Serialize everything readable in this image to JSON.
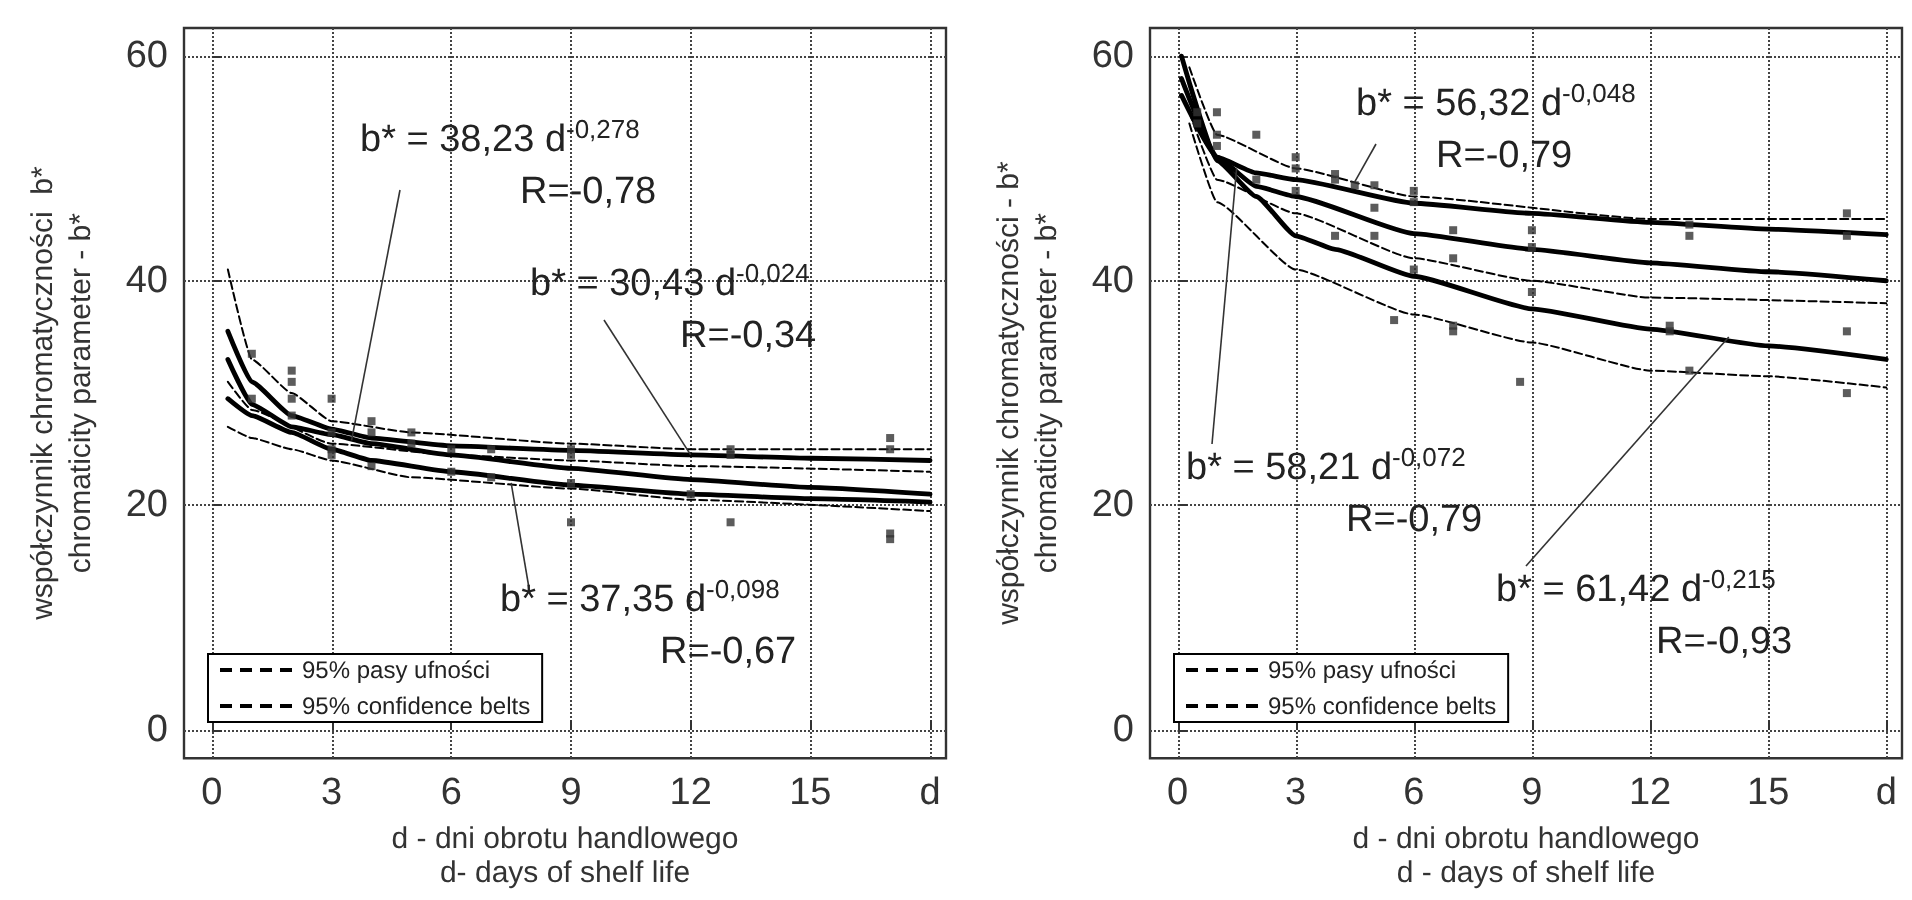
{
  "chart_data": [
    {
      "type": "line",
      "ylabel": "współczynnik chromatyczności  b*\nchromaticity parameter - b*",
      "xlabel": "d - dni obrotu handlowego\nd- days of shelf life",
      "xlim": [
        -0.7,
        18.4
      ],
      "ylim": [
        -2.5,
        62.5
      ],
      "xticks": [
        0,
        3,
        6,
        9,
        12,
        15,
        {
          "value": 18,
          "label": "d"
        }
      ],
      "yticks": [
        0,
        20,
        40,
        60
      ],
      "grid": true,
      "legend": "bottom left",
      "series": [
        {
          "color": "#000000",
          "line_style": "solid",
          "x": [
            0.4,
            1,
            2,
            3,
            4,
            6,
            9,
            12,
            15,
            18
          ],
          "values": [
            35.5,
            31,
            28,
            26.8,
            26,
            25.3,
            24.9,
            24.5,
            24.2,
            24
          ]
        },
        {
          "color": "#000000",
          "line_style": "solid",
          "x": [
            0.4,
            1,
            2,
            3,
            4,
            6,
            9,
            12,
            15,
            18
          ],
          "values": [
            33,
            29,
            27,
            26.3,
            25.5,
            24.5,
            23.3,
            22.3,
            21.6,
            21
          ]
        },
        {
          "color": "#000000",
          "line_style": "solid",
          "x": [
            0.4,
            1,
            2,
            3,
            4,
            6,
            9,
            12,
            15,
            18
          ],
          "values": [
            29.5,
            28,
            26.5,
            25,
            24,
            23,
            21.8,
            21,
            20.6,
            20.3
          ]
        },
        {
          "name": "95% pasy ufności",
          "color": "#000000",
          "line_style": "dashed",
          "x": [
            0.4,
            1,
            2,
            3,
            5,
            9,
            12,
            18
          ],
          "values": [
            41,
            33,
            30,
            27.5,
            26.5,
            25.5,
            25,
            25
          ]
        },
        {
          "name": "95% confidence belts",
          "color": "#000000",
          "line_style": "dashed",
          "x": [
            0.4,
            1,
            2,
            3,
            5,
            9,
            12,
            18
          ],
          "values": [
            27,
            26,
            25,
            24,
            22.5,
            21.5,
            20.5,
            19.5
          ]
        },
        {
          "color": "#000000",
          "line_style": "dashed",
          "x": [
            0.4,
            1,
            3,
            6,
            9,
            12,
            18
          ],
          "values": [
            31,
            28.5,
            25.5,
            24.5,
            24,
            23.5,
            23
          ]
        },
        {
          "type": "scatter",
          "marker": "square",
          "color": "#333333",
          "x": [
            1,
            1,
            2,
            2,
            2,
            2,
            3,
            3,
            3,
            3,
            4,
            4,
            4,
            5,
            5,
            6,
            6,
            7,
            7,
            9,
            9,
            9,
            9,
            12,
            13,
            13,
            13,
            17,
            17,
            17,
            17
          ],
          "values": [
            33.5,
            29.5,
            32,
            31,
            29.5,
            28,
            29.5,
            26.5,
            25,
            24.5,
            27.5,
            26.5,
            23.5,
            26.5,
            25.5,
            25,
            23,
            25,
            22.5,
            25,
            24.5,
            22,
            18.5,
            21,
            25,
            24.5,
            18.5,
            26,
            25,
            17.5,
            17
          ]
        }
      ],
      "annotations": [
        {
          "text": "b* = 38,23 d$^{-0,278}$\nR=-0,78",
          "x": 3.5,
          "y": 25.8
        },
        {
          "text": "b* = 30,43 d$^{-0,024}$\nR=-0,34",
          "x": 12,
          "y": 24.5
        },
        {
          "text": "b* = 37,35 d$^{-0,098}$\nR=-0,67",
          "x": 7.5,
          "y": 22
        }
      ]
    },
    {
      "type": "line",
      "ylabel": "współczynnik chromatyczności - b*\nchromaticity parameter - b*",
      "xlabel": "d - dni obrotu handlowego\nd - days of shelf life",
      "xlim": [
        -0.7,
        18.4
      ],
      "ylim": [
        -2.5,
        62.5
      ],
      "xticks": [
        0,
        3,
        6,
        9,
        12,
        15,
        {
          "value": 18,
          "label": "d"
        }
      ],
      "yticks": [
        0,
        20,
        40,
        60
      ],
      "grid": true,
      "legend": "bottom left",
      "series": [
        {
          "color": "#000000",
          "line_style": "solid",
          "x": [
            0.1,
            1,
            2,
            3,
            6,
            9,
            12,
            15,
            18
          ],
          "values": [
            56.5,
            51,
            49.6,
            49,
            46.9,
            46,
            45.2,
            44.6,
            44.1
          ]
        },
        {
          "color": "#000000",
          "line_style": "solid",
          "x": [
            0.1,
            1,
            2,
            3,
            6,
            9,
            12,
            15,
            18
          ],
          "values": [
            58,
            51,
            48.4,
            47.5,
            44.2,
            42.8,
            41.6,
            40.8,
            40
          ]
        },
        {
          "color": "#000000",
          "line_style": "solid",
          "x": [
            0.1,
            1,
            2,
            3,
            4,
            6,
            9,
            12,
            15,
            18
          ],
          "values": [
            60,
            50.7,
            47.5,
            44,
            42.8,
            40.4,
            37.5,
            35.7,
            34.2,
            33
          ]
        },
        {
          "name": "95% pasy ufności",
          "color": "#000000",
          "line_style": "dashed",
          "x": [
            0.3,
            1,
            3,
            6,
            12,
            18
          ],
          "values": [
            59,
            53,
            50,
            47.5,
            45.5,
            45.5
          ]
        },
        {
          "name": "95% confidence belts",
          "color": "#000000",
          "line_style": "dashed",
          "x": [
            0.3,
            1,
            3,
            6,
            9,
            12,
            15,
            18
          ],
          "values": [
            54,
            47,
            41,
            37,
            34.5,
            32,
            31.5,
            30.5
          ]
        },
        {
          "color": "#000000",
          "line_style": "dashed",
          "x": [
            0.3,
            1,
            3,
            6,
            9,
            12,
            18
          ],
          "values": [
            55,
            49,
            46,
            42,
            40,
            38.5,
            38
          ]
        },
        {
          "type": "scatter",
          "marker": "square",
          "color": "#333333",
          "x": [
            0.5,
            0.5,
            1,
            1,
            1,
            2,
            2,
            3,
            3,
            3,
            4,
            4,
            4,
            4.5,
            5,
            5,
            5,
            5.5,
            6,
            6,
            6,
            7,
            7,
            7,
            7,
            8.7,
            9,
            9,
            9,
            12.5,
            12.5,
            13,
            13,
            13,
            17,
            17,
            17,
            17
          ],
          "values": [
            55,
            54,
            55,
            53,
            52,
            53,
            49,
            51,
            50,
            48,
            49.5,
            49,
            44,
            48.5,
            48.5,
            46.5,
            44,
            36.5,
            48,
            47,
            41,
            44.5,
            42,
            36,
            35.5,
            31,
            44.5,
            43,
            39,
            36,
            35.5,
            45,
            44,
            32,
            46,
            44,
            35.5,
            30
          ]
        }
      ],
      "annotations": [
        {
          "text": "b* = 56,32 d$^{-0,048}$\nR=-0,79",
          "x": 4.5,
          "y": 48.8
        },
        {
          "text": "b* = 58,21 d$^{-0,072}$\nR=-0,79",
          "x": 1.5,
          "y": 50
        },
        {
          "text": "b* = 61,42 d$^{-0,215}$\nR=-0,93",
          "x": 14,
          "y": 35
        }
      ]
    }
  ]
}
